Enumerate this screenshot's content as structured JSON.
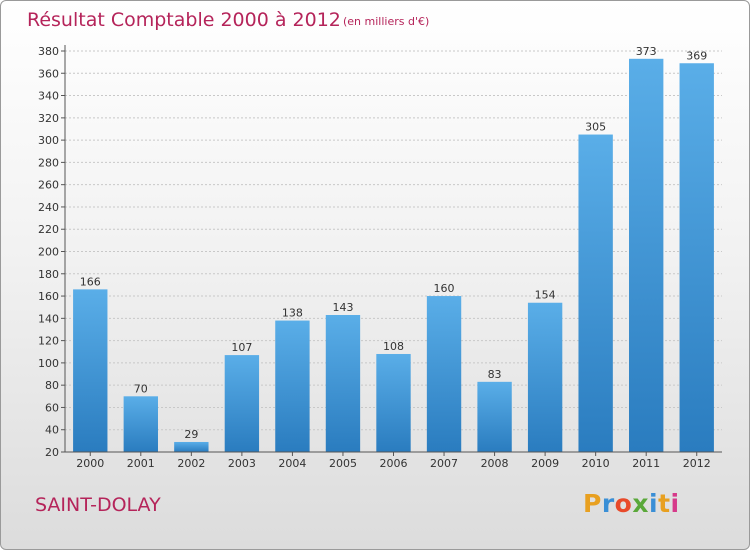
{
  "header": {
    "title": "Résultat Comptable 2000 à 2012",
    "unit_note": "(en milliers d'€)"
  },
  "footer": {
    "commune": "SAINT-DOLAY",
    "logo_text": "Proxiti",
    "logo_colors": [
      "#e8a020",
      "#3a8fd6",
      "#e84a2a",
      "#5aa83a",
      "#3a8fd6",
      "#e8a020",
      "#d63a8a"
    ]
  },
  "colors": {
    "title": "#b5245a",
    "bar_top": "#5aaee8",
    "bar_bottom": "#2a7cbf",
    "grid": "#c8c8c8",
    "axis": "#555555",
    "label": "#333333"
  },
  "chart_data": {
    "type": "bar",
    "title": "Résultat Comptable 2000 à 2012",
    "xlabel": "",
    "ylabel": "",
    "categories": [
      "2000",
      "2001",
      "2002",
      "2003",
      "2004",
      "2005",
      "2006",
      "2007",
      "2008",
      "2009",
      "2010",
      "2011",
      "2012"
    ],
    "values": [
      166,
      70,
      29,
      107,
      138,
      143,
      108,
      160,
      83,
      154,
      305,
      373,
      369
    ],
    "ylim": [
      20,
      380
    ],
    "yticks": [
      20,
      40,
      60,
      80,
      100,
      120,
      140,
      160,
      180,
      200,
      220,
      240,
      260,
      280,
      300,
      320,
      340,
      360,
      380
    ],
    "grid": true,
    "data_labels": true
  }
}
